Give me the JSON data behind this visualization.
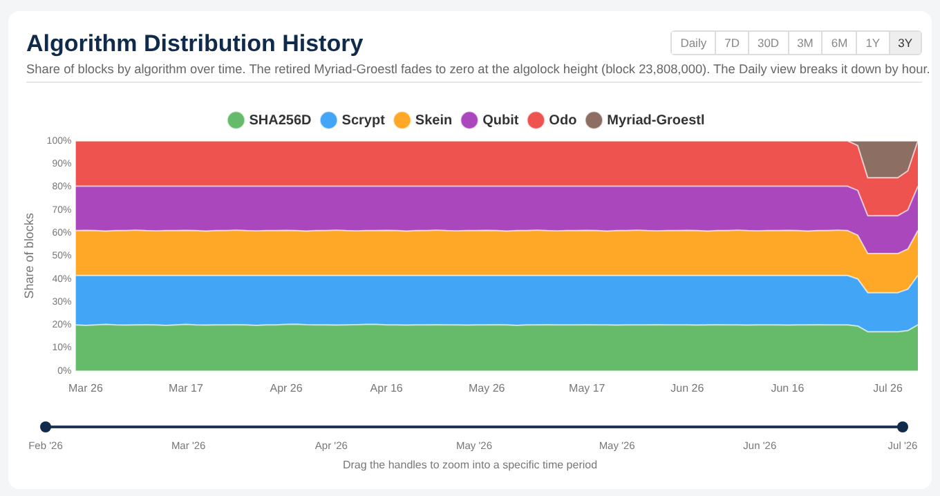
{
  "chart_data": {
    "type": "area",
    "title": "Algorithm Distribution History",
    "subtitle": "Share of blocks by algorithm over time. The retired Myriad-Groestl fades to zero at the algolock height (block 23,808,000). The Daily view breaks it down by hour.",
    "ylabel": "Share of blocks",
    "stacked": true,
    "legend": "top",
    "grid": false,
    "categories": [
      null,
      "Mar 26",
      null,
      null,
      null,
      null,
      null,
      null,
      null,
      null,
      null,
      "Mar 17",
      null,
      null,
      null,
      null,
      null,
      null,
      null,
      null,
      null,
      "Apr 26",
      null,
      null,
      null,
      null,
      null,
      null,
      null,
      null,
      null,
      "Apr 16",
      null,
      null,
      null,
      null,
      null,
      null,
      null,
      null,
      null,
      "May 26",
      null,
      null,
      null,
      null,
      null,
      null,
      null,
      null,
      null,
      "May 17",
      null,
      null,
      null,
      null,
      null,
      null,
      null,
      null,
      null,
      "Jun 26",
      null,
      null,
      null,
      null,
      null,
      null,
      null,
      null,
      null,
      "Jun 16",
      null,
      null,
      null,
      null,
      null,
      null,
      null,
      null,
      null,
      "Jul 26",
      null,
      null,
      null
    ],
    "ylim": [
      0,
      100
    ],
    "yticks": [
      {
        "value": 0,
        "label": "0%"
      },
      {
        "value": 10,
        "label": "10%"
      },
      {
        "value": 20,
        "label": "20%"
      },
      {
        "value": 30,
        "label": "30%"
      },
      {
        "value": 40,
        "label": "40%"
      },
      {
        "value": 50,
        "label": "50%"
      },
      {
        "value": 60,
        "label": "60%"
      },
      {
        "value": 70,
        "label": "70%"
      },
      {
        "value": 80,
        "label": "80%"
      },
      {
        "value": 90,
        "label": "90%"
      },
      {
        "value": 100,
        "label": "100%"
      }
    ],
    "series": [
      {
        "name": "SHA256D",
        "color": "#66bb6a",
        "values": [
          20.0,
          19.8,
          20.0,
          20.2,
          20.0,
          19.9,
          20.0,
          20.1,
          20.0,
          19.8,
          20.0,
          20.2,
          20.0,
          19.9,
          20.0,
          20.0,
          20.1,
          20.0,
          19.8,
          20.0,
          20.0,
          20.2,
          20.3,
          20.1,
          20.0,
          20.0,
          19.9,
          20.0,
          20.1,
          20.2,
          20.2,
          20.0,
          20.0,
          19.9,
          20.0,
          20.0,
          20.1,
          20.0,
          20.0,
          19.9,
          20.0,
          20.0,
          20.1,
          20.0,
          19.8,
          20.0,
          20.0,
          20.1,
          20.0,
          20.0,
          20.0,
          20.1,
          20.0,
          20.0,
          19.9,
          20.0,
          20.0,
          20.0,
          20.1,
          20.0,
          20.0,
          20.0,
          19.9,
          20.0,
          20.1,
          20.0,
          20.0,
          19.9,
          20.0,
          20.0,
          20.0,
          19.9,
          20.0,
          20.0,
          20.1,
          20.0,
          20.0,
          20.0,
          19.5,
          17,
          17,
          17,
          17,
          17.5,
          20
        ]
      },
      {
        "name": "Scrypt",
        "color": "#42a5f5",
        "values": [
          21.5,
          21.7,
          21.5,
          21.3,
          21.5,
          21.6,
          21.5,
          21.4,
          21.5,
          21.7,
          21.5,
          21.3,
          21.5,
          21.6,
          21.5,
          21.5,
          21.4,
          21.5,
          21.7,
          21.5,
          21.5,
          21.3,
          21.2,
          21.4,
          21.5,
          21.5,
          21.6,
          21.5,
          21.4,
          21.3,
          21.3,
          21.5,
          21.5,
          21.6,
          21.5,
          21.5,
          21.4,
          21.5,
          21.5,
          21.6,
          21.5,
          21.5,
          21.4,
          21.5,
          21.7,
          21.5,
          21.5,
          21.4,
          21.5,
          21.5,
          21.5,
          21.4,
          21.5,
          21.5,
          21.6,
          21.5,
          21.5,
          21.5,
          21.4,
          21.5,
          21.5,
          21.5,
          21.6,
          21.5,
          21.4,
          21.5,
          21.5,
          21.6,
          21.5,
          21.5,
          21.5,
          21.6,
          21.5,
          21.5,
          21.4,
          21.5,
          21.5,
          21.5,
          20.5,
          17,
          17,
          17,
          17,
          18,
          21.5
        ]
      },
      {
        "name": "Skein",
        "color": "#ffa726",
        "values": [
          19.5,
          19.6,
          19.5,
          19.3,
          19.5,
          19.5,
          19.7,
          19.5,
          19.4,
          19.5,
          19.5,
          19.6,
          19.5,
          19.3,
          19.5,
          19.5,
          19.7,
          19.5,
          19.4,
          19.5,
          19.5,
          19.6,
          19.5,
          19.3,
          19.5,
          19.5,
          19.7,
          19.5,
          19.4,
          19.5,
          19.5,
          19.6,
          19.5,
          19.3,
          19.5,
          19.5,
          19.7,
          19.5,
          19.4,
          19.5,
          19.5,
          19.6,
          19.5,
          19.3,
          19.5,
          19.5,
          19.7,
          19.5,
          19.4,
          19.5,
          19.5,
          19.6,
          19.5,
          19.3,
          19.5,
          19.5,
          19.7,
          19.5,
          19.4,
          19.5,
          19.5,
          19.6,
          19.5,
          19.3,
          19.5,
          19.5,
          19.7,
          19.5,
          19.4,
          19.5,
          19.5,
          19.6,
          19.5,
          19.3,
          19.5,
          19.5,
          19.7,
          19.5,
          19,
          17,
          17,
          17,
          17,
          17.5,
          19.5
        ]
      },
      {
        "name": "Qubit",
        "color": "#ab47bc",
        "values": [
          19.3,
          19.2,
          19.3,
          19.5,
          19.3,
          19.3,
          19.1,
          19.3,
          19.4,
          19.3,
          19.3,
          19.2,
          19.3,
          19.5,
          19.3,
          19.3,
          19.1,
          19.3,
          19.4,
          19.3,
          19.3,
          19.2,
          19.3,
          19.5,
          19.3,
          19.3,
          19.1,
          19.3,
          19.4,
          19.3,
          19.3,
          19.2,
          19.3,
          19.5,
          19.3,
          19.3,
          19.1,
          19.3,
          19.4,
          19.3,
          19.3,
          19.2,
          19.3,
          19.5,
          19.3,
          19.3,
          19.1,
          19.3,
          19.4,
          19.3,
          19.3,
          19.2,
          19.3,
          19.5,
          19.3,
          19.3,
          19.1,
          19.3,
          19.4,
          19.3,
          19.3,
          19.2,
          19.3,
          19.5,
          19.3,
          19.3,
          19.1,
          19.3,
          19.4,
          19.3,
          19.3,
          19.2,
          19.3,
          19.5,
          19.3,
          19.3,
          19.1,
          19.3,
          19.5,
          16.5,
          16.5,
          16.5,
          16.5,
          17,
          19.3
        ]
      },
      {
        "name": "Odo",
        "color": "#ef5350",
        "values": [
          19.7,
          19.7,
          19.7,
          19.7,
          19.7,
          19.7,
          19.7,
          19.7,
          19.7,
          19.7,
          19.7,
          19.7,
          19.7,
          19.7,
          19.7,
          19.7,
          19.7,
          19.7,
          19.7,
          19.7,
          19.7,
          19.7,
          19.7,
          19.7,
          19.7,
          19.7,
          19.7,
          19.7,
          19.7,
          19.7,
          19.7,
          19.7,
          19.7,
          19.7,
          19.7,
          19.7,
          19.7,
          19.7,
          19.7,
          19.7,
          19.7,
          19.7,
          19.7,
          19.7,
          19.7,
          19.7,
          19.7,
          19.7,
          19.7,
          19.7,
          19.7,
          19.7,
          19.7,
          19.7,
          19.7,
          19.7,
          19.7,
          19.7,
          19.7,
          19.7,
          19.7,
          19.7,
          19.7,
          19.7,
          19.7,
          19.7,
          19.7,
          19.7,
          19.7,
          19.7,
          19.7,
          19.7,
          19.7,
          19.7,
          19.7,
          19.7,
          19.7,
          19.7,
          19.5,
          16.5,
          16.5,
          16.5,
          16.5,
          17,
          19.7
        ]
      },
      {
        "name": "Myriad-Groestl",
        "color": "#8d6e63",
        "values": [
          0,
          0,
          0,
          0,
          0,
          0,
          0,
          0,
          0,
          0,
          0,
          0,
          0,
          0,
          0,
          0,
          0,
          0,
          0,
          0,
          0,
          0,
          0,
          0,
          0,
          0,
          0,
          0,
          0,
          0,
          0,
          0,
          0,
          0,
          0,
          0,
          0,
          0,
          0,
          0,
          0,
          0,
          0,
          0,
          0,
          0,
          0,
          0,
          0,
          0,
          0,
          0,
          0,
          0,
          0,
          0,
          0,
          0,
          0,
          0,
          0,
          0,
          0,
          0,
          0,
          0,
          0,
          0,
          0,
          0,
          0,
          0,
          0,
          0,
          0,
          0,
          0,
          0,
          2,
          16,
          16,
          16,
          16,
          13,
          0
        ]
      }
    ],
    "annotations": [
      "Daily",
      "7D",
      "30D",
      "3M",
      "6M",
      "1Y",
      "3Y",
      "Feb '26",
      "Mar '26",
      "Apr '26",
      "May '26",
      "May '26",
      "Jun '26",
      "Jul '26",
      "Drag the handles to zoom into a specific time period"
    ]
  }
}
